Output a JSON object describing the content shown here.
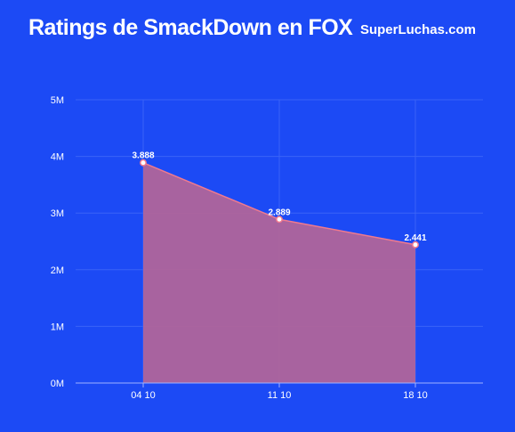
{
  "header": {
    "title": "Ratings de SmackDown en FOX",
    "brand": "SuperLuchas.com"
  },
  "colors": {
    "background": "#1c4af5",
    "area_fill": "#b0649a",
    "line": "#f07a8e",
    "grid": "#3a63f7",
    "axis": "#9fb3ff"
  },
  "chart_data": {
    "type": "area",
    "title": "Ratings de SmackDown en FOX",
    "categories": [
      "04 10",
      "11 10",
      "18 10"
    ],
    "values": [
      3.888,
      2.889,
      2.441
    ],
    "data_labels": [
      "3.888",
      "2.889",
      "2.441"
    ],
    "yticks": [
      0,
      1,
      2,
      3,
      4,
      5
    ],
    "ytick_labels": [
      "0M",
      "1M",
      "2M",
      "3M",
      "4M",
      "5M"
    ],
    "ylim": [
      0,
      5
    ],
    "grid": true,
    "legend": "none"
  }
}
